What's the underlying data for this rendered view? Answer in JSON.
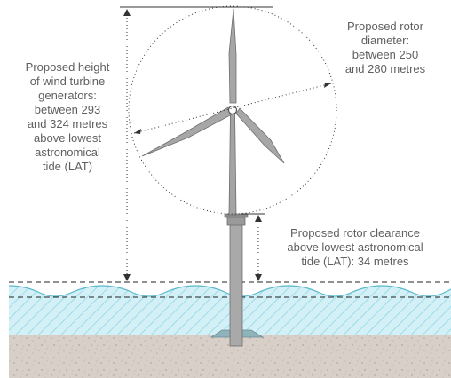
{
  "labels": {
    "height": {
      "lines": [
        "Proposed height",
        "of wind turbine",
        "generators:",
        "between 293",
        "and 324 metres",
        "above lowest",
        "astronomical",
        "tide (LAT)"
      ]
    },
    "diameter": {
      "lines": [
        "Proposed rotor",
        "diameter:",
        "between 250",
        "and 280 metres"
      ]
    },
    "clearance": {
      "lines": [
        "Proposed rotor clearance",
        "above lowest astronomical",
        "tide (LAT): 34 metres"
      ]
    }
  },
  "colors": {
    "sea": "#cfeef4",
    "sea_hatch": "#7fd0e0",
    "seabed": "#d6cdc6",
    "turbine": "#9a9a9a",
    "turbine_dark": "#6e6e6e",
    "label_text": "#5f5f5f",
    "dimension_line": "#333333"
  }
}
